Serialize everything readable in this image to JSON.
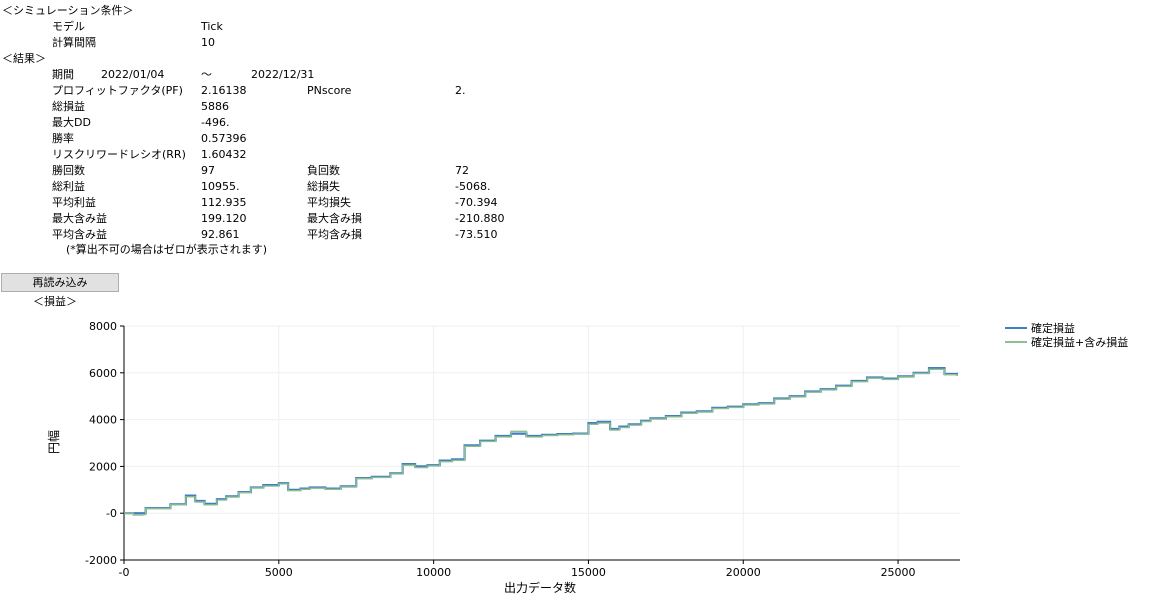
{
  "sim_header": "＜シミュレーション条件＞",
  "model_label": "モデル",
  "model_value": "Tick",
  "interval_label": "計算間隔",
  "interval_value": "10",
  "result_header": "＜結果＞",
  "period_label": "期間",
  "period_start": "2022/01/04",
  "period_sep": "～",
  "period_end": "2022/12/31",
  "metrics": {
    "pf_label": "プロフィットファクタ(PF)",
    "pf_value": "2.16138",
    "pnscore_label": "PNscore",
    "pnscore_value": "2.",
    "total_pl_label": "総損益",
    "total_pl_value": "5886",
    "max_dd_label": "最大DD",
    "max_dd_value": "-496.",
    "winrate_label": "勝率",
    "winrate_value": "0.57396",
    "rr_label": "リスクリワードレシオ(RR)",
    "rr_value": "1.60432",
    "wins_label": "勝回数",
    "wins_value": "97",
    "losses_label": "負回数",
    "losses_value": "72",
    "gross_profit_label": "総利益",
    "gross_profit_value": "10955.",
    "gross_loss_label": "総損失",
    "gross_loss_value": "-5068.",
    "avg_profit_label": "平均利益",
    "avg_profit_value": "112.935",
    "avg_loss_label": "平均損失",
    "avg_loss_value": "-70.394",
    "max_unreal_profit_label": "最大含み益",
    "max_unreal_profit_value": "199.120",
    "max_unreal_loss_label": "最大含み損",
    "max_unreal_loss_value": "-210.880",
    "avg_unreal_profit_label": "平均含み益",
    "avg_unreal_profit_value": "92.861",
    "avg_unreal_loss_label": "平均含み損",
    "avg_unreal_loss_value": "-73.510"
  },
  "note": "(*算出不可の場合はゼロが表示されます)",
  "reload_button": "再読み込み",
  "chart_header": "＜損益＞",
  "chart_data": {
    "type": "line",
    "title": "",
    "xlabel": "出力データ数",
    "ylabel": "円幅",
    "xlim": [
      0,
      27000
    ],
    "ylim": [
      -2000,
      8000
    ],
    "x_ticks": [
      "-0",
      "5000",
      "10000",
      "15000",
      "20000",
      "25000"
    ],
    "y_ticks": [
      "-2000",
      "-0",
      "2000",
      "4000",
      "6000",
      "8000"
    ],
    "grid": true,
    "legend_position": "top-right",
    "series": [
      {
        "name": "確定損益",
        "color": "#3e7fc1",
        "x": [
          0,
          600,
          700,
          1500,
          2000,
          2300,
          2600,
          3000,
          3300,
          3700,
          4100,
          4500,
          5000,
          5300,
          5700,
          6000,
          6500,
          7000,
          7500,
          8000,
          8600,
          9000,
          9400,
          9800,
          10200,
          10600,
          11000,
          11500,
          12000,
          12500,
          13000,
          13500,
          14000,
          14500,
          15000,
          15300,
          15700,
          16000,
          16300,
          16700,
          17000,
          17500,
          18000,
          18500,
          19000,
          19500,
          20000,
          20500,
          21000,
          21500,
          22000,
          22500,
          23000,
          23500,
          24000,
          24500,
          25000,
          25500,
          26000,
          26500,
          26900
        ],
        "values": [
          0,
          0,
          220,
          380,
          750,
          520,
          400,
          600,
          720,
          900,
          1100,
          1200,
          1280,
          1000,
          1050,
          1100,
          1050,
          1150,
          1500,
          1550,
          1700,
          2100,
          2000,
          2050,
          2250,
          2300,
          2900,
          3100,
          3300,
          3400,
          3300,
          3350,
          3380,
          3400,
          3850,
          3900,
          3600,
          3700,
          3800,
          3950,
          4050,
          4150,
          4300,
          4350,
          4500,
          4550,
          4650,
          4700,
          4900,
          5000,
          5200,
          5300,
          5450,
          5650,
          5800,
          5750,
          5850,
          6000,
          6200,
          5950,
          5886
        ]
      },
      {
        "name": "確定損益+含み損益",
        "color": "#8fbf8f",
        "x": [
          0,
          300,
          600,
          700,
          1500,
          2000,
          2300,
          2600,
          3000,
          3300,
          3700,
          4100,
          4500,
          5000,
          5300,
          5700,
          6000,
          6500,
          7000,
          7500,
          8000,
          8600,
          9000,
          9400,
          9800,
          10200,
          10600,
          11000,
          11500,
          12000,
          12500,
          13000,
          13500,
          14000,
          14500,
          15000,
          15300,
          15700,
          16000,
          16300,
          16700,
          17000,
          17500,
          18000,
          18500,
          19000,
          19500,
          20000,
          20500,
          21000,
          21500,
          22000,
          22500,
          23000,
          23500,
          24000,
          24500,
          25000,
          25500,
          26000,
          26500,
          26900
        ],
        "values": [
          0,
          -80,
          -60,
          200,
          360,
          700,
          480,
          360,
          560,
          690,
          880,
          1080,
          1160,
          1250,
          960,
          1020,
          1070,
          1020,
          1120,
          1480,
          1530,
          1680,
          2050,
          1950,
          2020,
          2200,
          2260,
          2860,
          3070,
          3260,
          3500,
          3260,
          3320,
          3350,
          3380,
          3800,
          3850,
          3550,
          3660,
          3760,
          3920,
          4020,
          4120,
          4270,
          4320,
          4470,
          4520,
          4620,
          4670,
          4870,
          4970,
          5170,
          5270,
          5420,
          5620,
          5770,
          5720,
          5820,
          5970,
          6150,
          5920,
          5860
        ]
      }
    ]
  }
}
